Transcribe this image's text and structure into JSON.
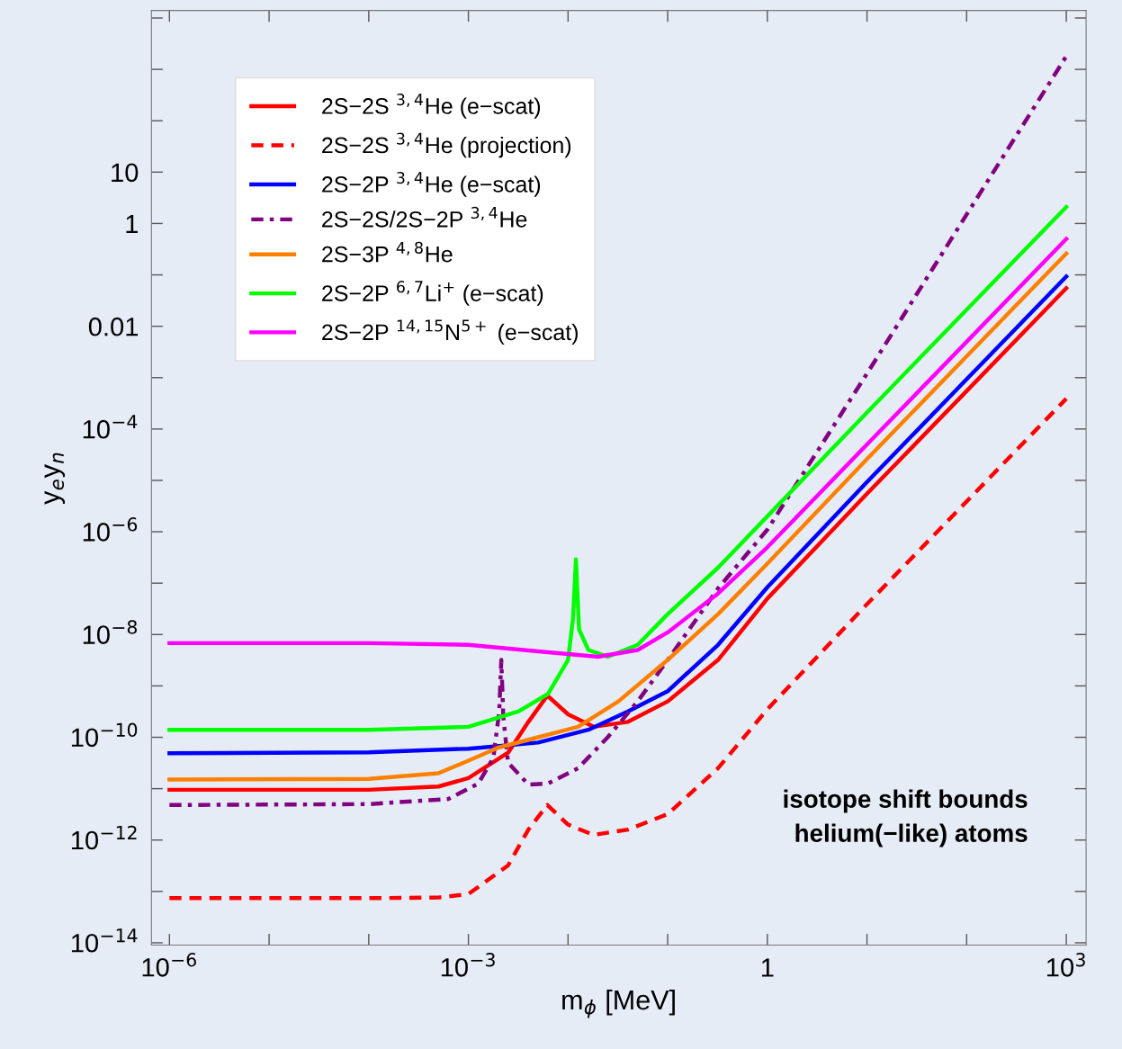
{
  "chart_data": {
    "type": "line",
    "xlabel": "m$_{ϕ}$ [MeV]",
    "ylabel": "y$_{e}$y$_{n}$",
    "log": "xy",
    "grid": false,
    "legend": "top left",
    "marker": "none",
    "xlim": [
      6.6e-07,
      1580
    ],
    "ylim": [
      9e-15,
      14000
    ],
    "xticks": [
      {
        "value": 1e-06,
        "label": "10$^{−6}$"
      },
      {
        "value": 1e-05,
        "label": null
      },
      {
        "value": 0.0001,
        "label": null
      },
      {
        "value": 0.001,
        "label": "10$^{−3}$"
      },
      {
        "value": 0.01,
        "label": null
      },
      {
        "value": 0.1,
        "label": null
      },
      1,
      {
        "value": 10,
        "label": null
      },
      {
        "value": 100,
        "label": null
      },
      {
        "value": 1000,
        "label": "10$^{3}$"
      }
    ],
    "yticks": [
      {
        "value": 1e-14,
        "label": "10$^{−14}$"
      },
      {
        "value": 1e-13,
        "label": null
      },
      {
        "value": 1e-12,
        "label": "10$^{−12}$"
      },
      {
        "value": 1e-11,
        "label": null
      },
      {
        "value": 1e-10,
        "label": "10$^{−10}$"
      },
      {
        "value": 1e-09,
        "label": null
      },
      {
        "value": 1e-08,
        "label": "10$^{−8}$"
      },
      {
        "value": 1e-07,
        "label": null
      },
      {
        "value": 1e-06,
        "label": "10$^{−6}$"
      },
      {
        "value": 1e-05,
        "label": null
      },
      {
        "value": 0.0001,
        "label": "10$^{−4}$"
      },
      {
        "value": 0.001,
        "label": null
      },
      0.01,
      {
        "value": 0.1,
        "label": null
      },
      1,
      10,
      {
        "value": 100,
        "label": null
      },
      {
        "value": 1000,
        "label": null
      },
      {
        "value": 10000,
        "label": null
      }
    ],
    "annotations": [
      "isotope shift bounds\nhelium(−like) atoms"
    ],
    "series": [
      {
        "name": "2S−2S $^{3,4}$He (e−scat)",
        "color": "#ff0000",
        "line_style": "solid",
        "x": [
          1e-06,
          0.0001,
          0.0005,
          0.001,
          0.0025,
          0.004,
          0.0062,
          0.01,
          0.018,
          0.04,
          0.1,
          0.32,
          1,
          10,
          100,
          1000
        ],
        "values": [
          9.5e-12,
          9.5e-12,
          1.1e-11,
          1.6e-11,
          5e-11,
          2e-10,
          6.5e-10,
          2.8e-10,
          1.6e-10,
          2e-10,
          5e-10,
          3.2e-09,
          5e-08,
          5.5e-06,
          0.00055,
          0.055
        ]
      },
      {
        "name": "2S−2S $^{3,4}$He (projection)",
        "color": "#ff0000",
        "line_style": "dashed",
        "x": [
          1e-06,
          0.0001,
          0.0005,
          0.001,
          0.0025,
          0.004,
          0.0062,
          0.01,
          0.018,
          0.04,
          0.1,
          0.32,
          1,
          10,
          100,
          1000
        ],
        "values": [
          7.4e-14,
          7.4e-14,
          7.6e-14,
          8.9e-14,
          3.2e-13,
          1.6e-12,
          4.8e-12,
          2e-12,
          1.26e-12,
          1.6e-12,
          3.2e-12,
          2.5e-11,
          3.5e-10,
          3.9e-08,
          3.9e-06,
          0.00039
        ]
      },
      {
        "name": "2S−2P $^{3,4}$He (e−scat)",
        "color": "#0000ff",
        "line_style": "solid",
        "x": [
          1e-06,
          0.0001,
          0.001,
          0.005,
          0.016,
          0.04,
          0.1,
          0.32,
          1,
          10,
          100,
          1000
        ],
        "values": [
          4.9e-11,
          5.1e-11,
          6e-11,
          7.9e-11,
          1.4e-10,
          3.2e-10,
          7.9e-10,
          6.3e-09,
          8.3e-08,
          9.3e-06,
          0.00093,
          0.093
        ]
      },
      {
        "name": "2S−2S/2S−2P $^{3,4}$He",
        "color": "#800080",
        "line_style": "dashdot",
        "x": [
          1e-06,
          0.0001,
          0.00063,
          0.00126,
          0.00178,
          0.00204,
          0.00214,
          0.00224,
          0.0025,
          0.004,
          0.0063,
          0.0126,
          0.025,
          0.05,
          0.1,
          0.32,
          1,
          10,
          100,
          1000
        ],
        "values": [
          4.8e-12,
          5e-12,
          6.3e-12,
          1.26e-11,
          4e-11,
          3.2e-10,
          3.2e-09,
          2.5e-10,
          3.2e-11,
          1.2e-11,
          1.26e-11,
          2.5e-11,
          1e-10,
          5e-10,
          3.2e-09,
          7.9e-08,
          1.1e-06,
          0.0012,
          1.5,
          1800
        ]
      },
      {
        "name": "2S−3P $^{4,8}$He",
        "color": "#ff8000",
        "line_style": "solid",
        "x": [
          1e-06,
          0.0001,
          0.0005,
          0.001,
          0.002,
          0.005,
          0.0126,
          0.032,
          0.1,
          0.32,
          1,
          10,
          100,
          1000
        ],
        "values": [
          1.5e-11,
          1.55e-11,
          2e-11,
          3.5e-11,
          6.3e-11,
          1e-10,
          1.6e-10,
          5e-10,
          3.2e-09,
          2.5e-08,
          2.4e-07,
          2.6e-05,
          0.0026,
          0.26
        ]
      },
      {
        "name": "2S−2P $^{6,7}$Li$^{+}$ (e−scat)",
        "color": "#00ff00",
        "line_style": "solid",
        "x": [
          1e-06,
          0.0001,
          0.001,
          0.0032,
          0.0063,
          0.01,
          0.0112,
          0.012,
          0.0129,
          0.016,
          0.025,
          0.05,
          0.1,
          0.32,
          1,
          10,
          100,
          1000
        ],
        "values": [
          1.4e-10,
          1.4e-10,
          1.6e-10,
          3.2e-10,
          7e-10,
          3.2e-09,
          2e-08,
          2.9e-07,
          1.26e-08,
          5e-09,
          3.7e-09,
          6.3e-09,
          2.5e-08,
          2e-07,
          2e-06,
          0.00021,
          0.021,
          2.1
        ]
      },
      {
        "name": "2S−2P $^{14,15}$N$^{5+}$ (e−scat)",
        "color": "#ff00ff",
        "line_style": "solid",
        "x": [
          1e-06,
          0.0001,
          0.001,
          0.005,
          0.02,
          0.05,
          0.1,
          0.32,
          1,
          10,
          100,
          1000
        ],
        "values": [
          6.8e-09,
          6.8e-09,
          6.3e-09,
          4.7e-09,
          3.7e-09,
          5e-09,
          1.1e-08,
          6.3e-08,
          5e-07,
          5e-05,
          0.005,
          0.5
        ]
      }
    ]
  }
}
